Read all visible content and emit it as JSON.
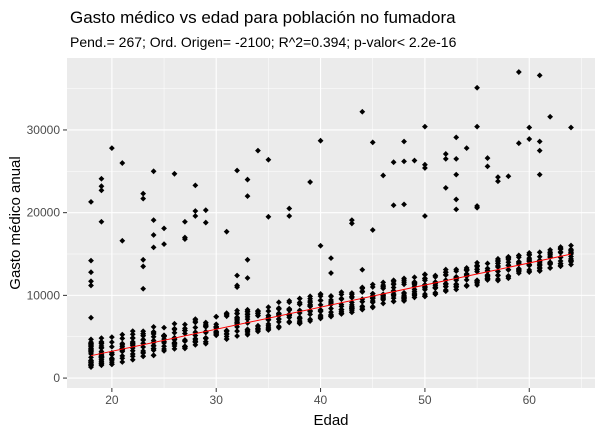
{
  "chart_data": {
    "type": "scatter",
    "title": "Gasto médico vs edad para población no fumadora",
    "subtitle": "Pend.= 267; Ord. Origen= -2100; R^2=0.394; p-valor< 2.2e-16",
    "xlabel": "Edad",
    "ylabel": "Gasto médico anual",
    "xlim": [
      15.7,
      66.3
    ],
    "ylim": [
      -1200,
      38700
    ],
    "x_ticks": [
      20,
      30,
      40,
      50,
      60
    ],
    "y_ticks": [
      0,
      10000,
      20000,
      30000
    ],
    "x_tick_labels": [
      "20",
      "30",
      "40",
      "50",
      "60"
    ],
    "y_tick_labels": [
      "0",
      "10000",
      "20000",
      "30000"
    ],
    "grid": true,
    "legend": "none",
    "colors": {
      "panel": "#ebebeb",
      "grid": "#ffffff",
      "points": "#000000",
      "fit_line": "#ff0000"
    },
    "fit_line": {
      "slope": 267,
      "intercept": -2100,
      "x_range": [
        18,
        64
      ]
    },
    "main_band": {
      "x_range": [
        18,
        64
      ],
      "low_at_18": 1100,
      "low_at_64": 13700,
      "high_at_18": 4700,
      "high_at_64": 16200
    },
    "outliers": [
      [
        18,
        21300
      ],
      [
        18,
        14200
      ],
      [
        18,
        12800
      ],
      [
        18,
        11700
      ],
      [
        18,
        11200
      ],
      [
        18,
        7300
      ],
      [
        19,
        24100
      ],
      [
        19,
        23200
      ],
      [
        19,
        22700
      ],
      [
        19,
        18900
      ],
      [
        20,
        27800
      ],
      [
        21,
        26000
      ],
      [
        21,
        16600
      ],
      [
        23,
        22300
      ],
      [
        23,
        21700
      ],
      [
        23,
        14300
      ],
      [
        23,
        13500
      ],
      [
        23,
        10800
      ],
      [
        24,
        25000
      ],
      [
        24,
        19100
      ],
      [
        24,
        17300
      ],
      [
        24,
        15800
      ],
      [
        25,
        18100
      ],
      [
        25,
        16200
      ],
      [
        26,
        24700
      ],
      [
        27,
        17000
      ],
      [
        27,
        16800
      ],
      [
        27,
        18900
      ],
      [
        28,
        23300
      ],
      [
        28,
        20200
      ],
      [
        28,
        19600
      ],
      [
        29,
        20300
      ],
      [
        29,
        18800
      ],
      [
        31,
        17700
      ],
      [
        32,
        25100
      ],
      [
        32,
        12400
      ],
      [
        32,
        11200
      ],
      [
        32,
        11000
      ],
      [
        33,
        24000
      ],
      [
        33,
        22000
      ],
      [
        33,
        14300
      ],
      [
        33,
        12100
      ],
      [
        34,
        27500
      ],
      [
        35,
        19500
      ],
      [
        35,
        26400
      ],
      [
        37,
        20500
      ],
      [
        37,
        19600
      ],
      [
        39,
        23700
      ],
      [
        40,
        28700
      ],
      [
        40,
        16000
      ],
      [
        41,
        14500
      ],
      [
        41,
        12700
      ],
      [
        43,
        19100
      ],
      [
        43,
        18700
      ],
      [
        44,
        32200
      ],
      [
        44,
        13100
      ],
      [
        45,
        28500
      ],
      [
        45,
        17900
      ],
      [
        46,
        24500
      ],
      [
        47,
        26100
      ],
      [
        47,
        20900
      ],
      [
        48,
        28600
      ],
      [
        48,
        26200
      ],
      [
        48,
        21000
      ],
      [
        49,
        26300
      ],
      [
        50,
        30400
      ],
      [
        50,
        25800
      ],
      [
        50,
        25400
      ],
      [
        50,
        19600
      ],
      [
        52,
        27100
      ],
      [
        52,
        26500
      ],
      [
        52,
        23000
      ],
      [
        53,
        29100
      ],
      [
        53,
        26500
      ],
      [
        53,
        24600
      ],
      [
        53,
        21600
      ],
      [
        53,
        20400
      ],
      [
        54,
        27800
      ],
      [
        55,
        35100
      ],
      [
        55,
        30400
      ],
      [
        55,
        20800
      ],
      [
        55,
        20600
      ],
      [
        56,
        26600
      ],
      [
        56,
        25600
      ],
      [
        57,
        23800
      ],
      [
        57,
        24300
      ],
      [
        58,
        24400
      ],
      [
        59,
        37000
      ],
      [
        59,
        28400
      ],
      [
        60,
        30300
      ],
      [
        60,
        28900
      ],
      [
        61,
        36600
      ],
      [
        61,
        28600
      ],
      [
        61,
        27500
      ],
      [
        61,
        24600
      ],
      [
        62,
        31600
      ],
      [
        64,
        30300
      ]
    ]
  }
}
